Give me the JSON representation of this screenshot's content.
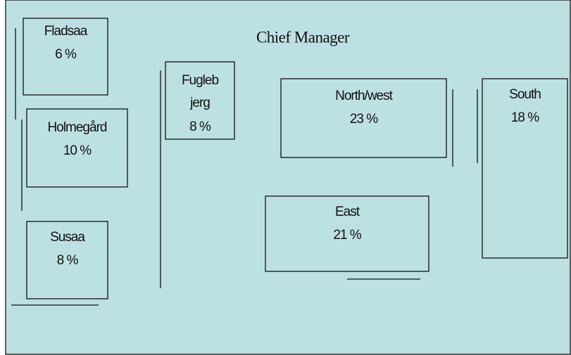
{
  "title": "Chief Manager",
  "nodes": [
    {
      "name_lines": [
        "Fladsaa"
      ],
      "value": "6 %"
    },
    {
      "name_lines": [
        "Holmegård"
      ],
      "value": "10 %"
    },
    {
      "name_lines": [
        "Susaa"
      ],
      "value": "8 %"
    },
    {
      "name_lines": [
        "Fugleb",
        "jerg"
      ],
      "value": "8 %"
    },
    {
      "name_lines": [
        "North/west"
      ],
      "value": "23 %"
    },
    {
      "name_lines": [
        "East"
      ],
      "value": "21 %"
    },
    {
      "name_lines": [
        "South"
      ],
      "value": "18 %"
    }
  ]
}
